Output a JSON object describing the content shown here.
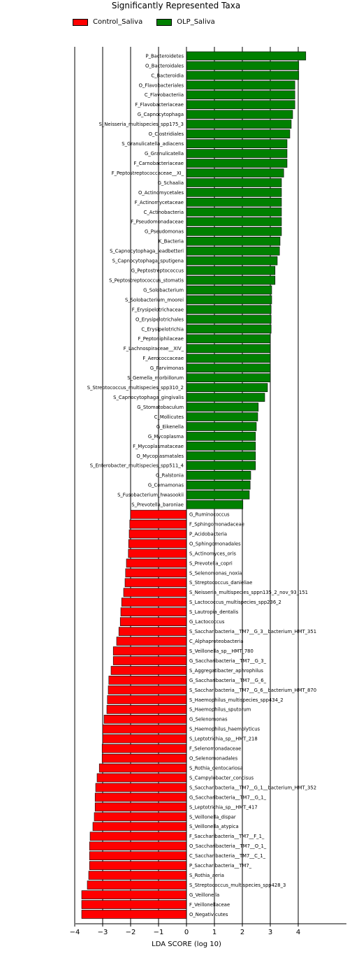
{
  "chart_data": {
    "type": "bar",
    "orientation": "horizontal",
    "title": "Significantly Represented Taxa",
    "xlabel": "LDA SCORE (log 10)",
    "xlim": [
      -4.3,
      4.6
    ],
    "xticks": [
      -4,
      -3,
      -2,
      -1,
      0,
      1,
      2,
      3,
      4
    ],
    "grid": "vertical lines at integer ticks",
    "legend_position": "top-left",
    "series": [
      {
        "name": "Control_Saliva",
        "color": "#ff0000"
      },
      {
        "name": "OLP_Saliva",
        "color": "#008000"
      }
    ],
    "bars": [
      {
        "label": "P_Bacteroidetes",
        "value": 4.27,
        "group": "OLP_Saliva"
      },
      {
        "label": "O_Bacteroidales",
        "value": 4.02,
        "group": "OLP_Saliva"
      },
      {
        "label": "C_Bacteroidia",
        "value": 4.02,
        "group": "OLP_Saliva"
      },
      {
        "label": "O_Flavobacteriales",
        "value": 3.88,
        "group": "OLP_Saliva"
      },
      {
        "label": "C_Flavobacteriia",
        "value": 3.88,
        "group": "OLP_Saliva"
      },
      {
        "label": "F_Flavobacteriaceae",
        "value": 3.88,
        "group": "OLP_Saliva"
      },
      {
        "label": "G_Capnocytophaga",
        "value": 3.8,
        "group": "OLP_Saliva"
      },
      {
        "label": "S_Neisseria_multispecies_spp175_3",
        "value": 3.75,
        "group": "OLP_Saliva"
      },
      {
        "label": "O_Clostridiales",
        "value": 3.7,
        "group": "OLP_Saliva"
      },
      {
        "label": "S_Granulicatella_adiacens",
        "value": 3.6,
        "group": "OLP_Saliva"
      },
      {
        "label": "G_Granulicatella",
        "value": 3.6,
        "group": "OLP_Saliva"
      },
      {
        "label": "F_Carnobacteriaceae",
        "value": 3.6,
        "group": "OLP_Saliva"
      },
      {
        "label": "F_Peptostreptococcaceae__XI_",
        "value": 3.48,
        "group": "OLP_Saliva"
      },
      {
        "label": "G_Schaalia",
        "value": 3.4,
        "group": "OLP_Saliva"
      },
      {
        "label": "O_Actinomycetales",
        "value": 3.4,
        "group": "OLP_Saliva"
      },
      {
        "label": "F_Actinomycetaceae",
        "value": 3.4,
        "group": "OLP_Saliva"
      },
      {
        "label": "C_Actinobacteria",
        "value": 3.4,
        "group": "OLP_Saliva"
      },
      {
        "label": "F_Pseudomonadaceae",
        "value": 3.4,
        "group": "OLP_Saliva"
      },
      {
        "label": "G_Pseudomonas",
        "value": 3.4,
        "group": "OLP_Saliva"
      },
      {
        "label": "K_Bacteria",
        "value": 3.35,
        "group": "OLP_Saliva"
      },
      {
        "label": "S_Capnocytophaga_leadbetteri",
        "value": 3.33,
        "group": "OLP_Saliva"
      },
      {
        "label": "S_Capnocytophaga_sputigena",
        "value": 3.25,
        "group": "OLP_Saliva"
      },
      {
        "label": "G_Peptostreptococcus",
        "value": 3.17,
        "group": "OLP_Saliva"
      },
      {
        "label": "S_Peptostreptococcus_stomatis",
        "value": 3.17,
        "group": "OLP_Saliva"
      },
      {
        "label": "G_Solobacterium",
        "value": 3.05,
        "group": "OLP_Saliva"
      },
      {
        "label": "S_Solobacterium_moorei",
        "value": 3.05,
        "group": "OLP_Saliva"
      },
      {
        "label": "F_Erysipelotrichaceae",
        "value": 3.03,
        "group": "OLP_Saliva"
      },
      {
        "label": "O_Erysipelotrichales",
        "value": 3.03,
        "group": "OLP_Saliva"
      },
      {
        "label": "C_Erysipelotrichia",
        "value": 3.03,
        "group": "OLP_Saliva"
      },
      {
        "label": "F_Peptoniphilaceae",
        "value": 3.0,
        "group": "OLP_Saliva"
      },
      {
        "label": "F_Lachnospiraceae__XIV_",
        "value": 3.0,
        "group": "OLP_Saliva"
      },
      {
        "label": "F_Aerococcaceae",
        "value": 3.0,
        "group": "OLP_Saliva"
      },
      {
        "label": "G_Parvimonas",
        "value": 3.0,
        "group": "OLP_Saliva"
      },
      {
        "label": "S_Gemella_morbillorum",
        "value": 3.0,
        "group": "OLP_Saliva"
      },
      {
        "label": "S_Streptococcus_multispecies_spp310_2",
        "value": 2.9,
        "group": "OLP_Saliva"
      },
      {
        "label": "S_Capnocytophaga_gingivalis",
        "value": 2.8,
        "group": "OLP_Saliva"
      },
      {
        "label": "G_Stomatobaculum",
        "value": 2.57,
        "group": "OLP_Saliva"
      },
      {
        "label": "C_Mollicutes",
        "value": 2.55,
        "group": "OLP_Saliva"
      },
      {
        "label": "G_Eikenella",
        "value": 2.5,
        "group": "OLP_Saliva"
      },
      {
        "label": "G_Mycoplasma",
        "value": 2.47,
        "group": "OLP_Saliva"
      },
      {
        "label": "F_Mycoplasmataceae",
        "value": 2.47,
        "group": "OLP_Saliva"
      },
      {
        "label": "O_Mycoplasmatales",
        "value": 2.47,
        "group": "OLP_Saliva"
      },
      {
        "label": "S_Enterobacter_multispecies_spp511_4",
        "value": 2.47,
        "group": "OLP_Saliva"
      },
      {
        "label": "G_Ralstonia",
        "value": 2.3,
        "group": "OLP_Saliva"
      },
      {
        "label": "G_Comamonas",
        "value": 2.28,
        "group": "OLP_Saliva"
      },
      {
        "label": "S_Fusobacterium_hwasookii",
        "value": 2.25,
        "group": "OLP_Saliva"
      },
      {
        "label": "S_Prevotella_baroniae",
        "value": 2.02,
        "group": "OLP_Saliva"
      },
      {
        "label": "G_Ruminococcus",
        "value": -2.0,
        "group": "Control_Saliva"
      },
      {
        "label": "F_Sphingomonadaceae",
        "value": -2.03,
        "group": "Control_Saliva"
      },
      {
        "label": "P_Acidobacteria",
        "value": -2.05,
        "group": "Control_Saliva"
      },
      {
        "label": "O_Sphingomonadales",
        "value": -2.07,
        "group": "Control_Saliva"
      },
      {
        "label": "S_Actinomyces_oris",
        "value": -2.08,
        "group": "Control_Saliva"
      },
      {
        "label": "S_Prevotella_copri",
        "value": -2.15,
        "group": "Control_Saliva"
      },
      {
        "label": "S_Selenomonas_noxia",
        "value": -2.18,
        "group": "Control_Saliva"
      },
      {
        "label": "S_Streptococcus_danieliae",
        "value": -2.2,
        "group": "Control_Saliva"
      },
      {
        "label": "S_Neisseria_multispecies_sppn135_2_nov_93_151",
        "value": -2.25,
        "group": "Control_Saliva"
      },
      {
        "label": "S_Lactococcus_multispecies_spp236_2",
        "value": -2.32,
        "group": "Control_Saliva"
      },
      {
        "label": "S_Lautropia_dentalis",
        "value": -2.35,
        "group": "Control_Saliva"
      },
      {
        "label": "G_Lactococcus",
        "value": -2.37,
        "group": "Control_Saliva"
      },
      {
        "label": "S_Saccharibacteria__TM7__G_3__bacterium_HMT_351",
        "value": -2.42,
        "group": "Control_Saliva"
      },
      {
        "label": "C_Alphaproteobacteria",
        "value": -2.5,
        "group": "Control_Saliva"
      },
      {
        "label": "S_Veillonella_sp__HMT_780",
        "value": -2.62,
        "group": "Control_Saliva"
      },
      {
        "label": "G_Saccharibacteria__TM7__G_3_",
        "value": -2.62,
        "group": "Control_Saliva"
      },
      {
        "label": "S_Aggregatibacter_aphrophilus",
        "value": -2.7,
        "group": "Control_Saliva"
      },
      {
        "label": "G_Saccharibacteria__TM7__G_6_",
        "value": -2.78,
        "group": "Control_Saliva"
      },
      {
        "label": "S_Saccharibacteria__TM7__G_6__bacterium_HMT_870",
        "value": -2.8,
        "group": "Control_Saliva"
      },
      {
        "label": "S_Haemophilus_multispecies_spp434_2",
        "value": -2.83,
        "group": "Control_Saliva"
      },
      {
        "label": "S_Haemophilus_sputorum",
        "value": -2.85,
        "group": "Control_Saliva"
      },
      {
        "label": "G_Selenomonas",
        "value": -2.95,
        "group": "Control_Saliva"
      },
      {
        "label": "S_Haemophilus_haemolyticus",
        "value": -3.0,
        "group": "Control_Saliva"
      },
      {
        "label": "S_Leptotrichia_sp__HMT_218",
        "value": -3.0,
        "group": "Control_Saliva"
      },
      {
        "label": "F_Selenomonadaceae",
        "value": -3.02,
        "group": "Control_Saliva"
      },
      {
        "label": "O_Selenomonadales",
        "value": -3.02,
        "group": "Control_Saliva"
      },
      {
        "label": "S_Rothia_dentocariosa",
        "value": -3.12,
        "group": "Control_Saliva"
      },
      {
        "label": "S_Campylobacter_concisus",
        "value": -3.2,
        "group": "Control_Saliva"
      },
      {
        "label": "S_Saccharibacteria__TM7__G_1__bacterium_HMT_352",
        "value": -3.25,
        "group": "Control_Saliva"
      },
      {
        "label": "G_Saccharibacteria__TM7__G_1_",
        "value": -3.27,
        "group": "Control_Saliva"
      },
      {
        "label": "S_Leptotrichia_sp__HMT_417",
        "value": -3.27,
        "group": "Control_Saliva"
      },
      {
        "label": "S_Veillonella_dispar",
        "value": -3.3,
        "group": "Control_Saliva"
      },
      {
        "label": "S_Veillonella_atypica",
        "value": -3.35,
        "group": "Control_Saliva"
      },
      {
        "label": "F_Saccharibacteria__TM7__F_1_",
        "value": -3.45,
        "group": "Control_Saliva"
      },
      {
        "label": "O_Saccharibacteria__TM7__O_1_",
        "value": -3.47,
        "group": "Control_Saliva"
      },
      {
        "label": "C_Saccharibacteria__TM7__C_1_",
        "value": -3.47,
        "group": "Control_Saliva"
      },
      {
        "label": "P_Saccharibacteria__TM7_",
        "value": -3.47,
        "group": "Control_Saliva"
      },
      {
        "label": "S_Rothia_aeria",
        "value": -3.5,
        "group": "Control_Saliva"
      },
      {
        "label": "S_Streptococcus_multispecies_spp428_3",
        "value": -3.55,
        "group": "Control_Saliva"
      },
      {
        "label": "G_Veillonella",
        "value": -3.75,
        "group": "Control_Saliva"
      },
      {
        "label": "F_Veillonellaceae",
        "value": -3.75,
        "group": "Control_Saliva"
      },
      {
        "label": "O_Negativicutes",
        "value": -3.75,
        "group": "Control_Saliva"
      }
    ]
  }
}
